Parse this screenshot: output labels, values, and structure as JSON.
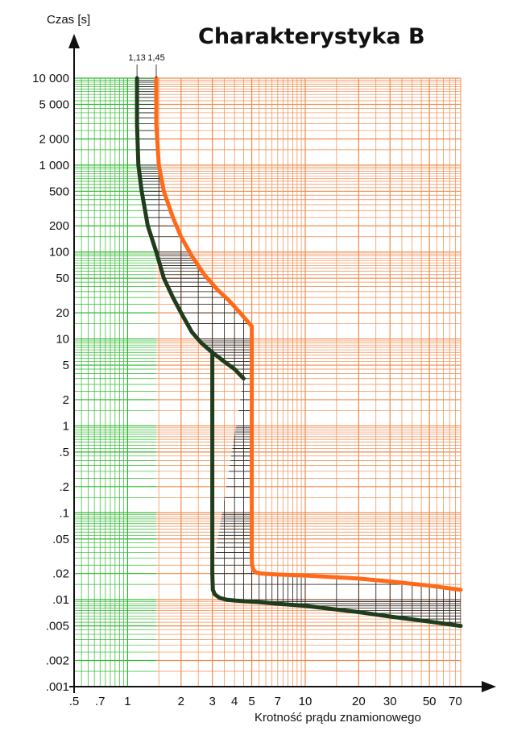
{
  "chart_data": {
    "type": "line",
    "title": "Charakterystyka B",
    "xlabel": "Krotność prądu znamionowego",
    "ylabel": "Czas [s]",
    "x_scale": "log",
    "y_scale": "log",
    "xlim": [
      0.5,
      75
    ],
    "ylim": [
      0.001,
      10000
    ],
    "x_ticks": [
      {
        "value": 0.5,
        "label": ".5"
      },
      {
        "value": 0.7,
        "label": ".7"
      },
      {
        "value": 1,
        "label": "1"
      },
      {
        "value": 2,
        "label": "2"
      },
      {
        "value": 3,
        "label": "3"
      },
      {
        "value": 4,
        "label": "4"
      },
      {
        "value": 5,
        "label": "5"
      },
      {
        "value": 7,
        "label": "7"
      },
      {
        "value": 10,
        "label": "10"
      },
      {
        "value": 20,
        "label": "20"
      },
      {
        "value": 30,
        "label": "30"
      },
      {
        "value": 50,
        "label": "50"
      },
      {
        "value": 70,
        "label": "70"
      }
    ],
    "y_ticks": [
      {
        "value": 10000,
        "label": "10 000"
      },
      {
        "value": 5000,
        "label": "5 000"
      },
      {
        "value": 2000,
        "label": "2 000"
      },
      {
        "value": 1000,
        "label": "1 000"
      },
      {
        "value": 500,
        "label": "500"
      },
      {
        "value": 200,
        "label": "200"
      },
      {
        "value": 100,
        "label": "100"
      },
      {
        "value": 50,
        "label": "50"
      },
      {
        "value": 20,
        "label": "20"
      },
      {
        "value": 10,
        "label": "10"
      },
      {
        "value": 5,
        "label": "5"
      },
      {
        "value": 2,
        "label": "2"
      },
      {
        "value": 1,
        "label": "1"
      },
      {
        "value": 0.5,
        "label": ".5"
      },
      {
        "value": 0.2,
        "label": ".2"
      },
      {
        "value": 0.1,
        "label": ".1"
      },
      {
        "value": 0.05,
        "label": ".05"
      },
      {
        "value": 0.02,
        "label": ".02"
      },
      {
        "value": 0.01,
        "label": ".01"
      },
      {
        "value": 0.005,
        "label": ".005"
      },
      {
        "value": 0.002,
        "label": ".002"
      },
      {
        "value": 0.001,
        "label": ".001"
      }
    ],
    "markers": [
      {
        "value": 1.13,
        "label": "1,13"
      },
      {
        "value": 1.45,
        "label": "1,45"
      }
    ],
    "grid": true,
    "colors": {
      "grid_low": "#2eb82e",
      "grid_high": "#f08a4b",
      "grid_band": "#222222",
      "lower_curve": "#1f3d1c",
      "upper_curve": "#ff6a1a",
      "axis": "#111111"
    },
    "series": [
      {
        "role": "lower",
        "color": "#1f3d1c",
        "x": [
          1.13,
          1.13,
          1.15,
          1.2,
          1.3,
          1.45,
          1.6,
          1.8,
          2.0,
          2.3,
          2.6,
          3.0,
          3.5,
          4.0,
          4.5
        ],
        "y": [
          10000,
          3000,
          1000,
          500,
          200,
          100,
          50,
          30,
          20,
          12,
          9,
          7,
          5.5,
          4.5,
          3.5
        ]
      },
      {
        "role": "lower-instant",
        "color": "#1f3d1c",
        "x": [
          3.0,
          3.0,
          3.02,
          3.1,
          3.3,
          3.6,
          4.0,
          5,
          7,
          10,
          20,
          30,
          50,
          75
        ],
        "y": [
          7,
          0.02,
          0.013,
          0.0115,
          0.0105,
          0.01,
          0.0098,
          0.0095,
          0.009,
          0.0085,
          0.0072,
          0.0064,
          0.0056,
          0.005
        ]
      },
      {
        "role": "upper",
        "color": "#ff6a1a",
        "x": [
          1.45,
          1.45,
          1.5,
          1.6,
          1.8,
          2.0,
          2.3,
          2.7,
          3.2,
          3.7,
          4.3,
          4.85,
          5.0
        ],
        "y": [
          10000,
          3000,
          1000,
          500,
          250,
          150,
          90,
          55,
          37,
          28,
          20,
          15,
          14
        ]
      },
      {
        "role": "upper-instant",
        "color": "#ff6a1a",
        "x": [
          5.0,
          5.0,
          5.02,
          5.1,
          5.3,
          5.7,
          7,
          10,
          20,
          30,
          50,
          75
        ],
        "y": [
          14,
          0.03,
          0.025,
          0.022,
          0.0205,
          0.02,
          0.0195,
          0.019,
          0.0175,
          0.0162,
          0.0145,
          0.013
        ]
      }
    ]
  }
}
